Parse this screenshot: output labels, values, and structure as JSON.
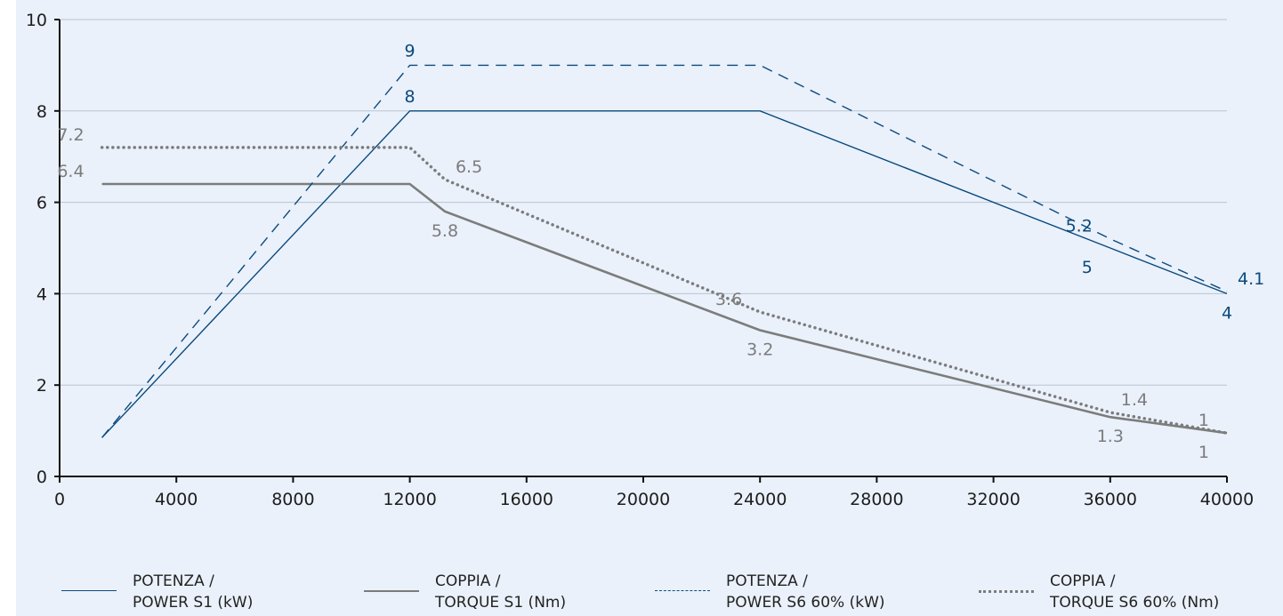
{
  "chart_data": {
    "type": "line",
    "title": "",
    "xlabel": "",
    "ylabel": "",
    "xlim": [
      0,
      40000
    ],
    "ylim": [
      0,
      10
    ],
    "xticks": [
      0,
      4000,
      8000,
      12000,
      16000,
      20000,
      24000,
      28000,
      32000,
      36000,
      40000
    ],
    "yticks": [
      0,
      2,
      4,
      6,
      8,
      10
    ],
    "grid": "horizontal",
    "legend_position": "bottom",
    "colors": {
      "blue": "#0b4a7d",
      "gray": "#7c7c7c"
    },
    "series": [
      {
        "name": "POTENZA / POWER S1 (kW)",
        "legend_lines": [
          "POTENZA /",
          "POWER S1 (kW)"
        ],
        "color": "#0b4a7d",
        "style": "solid",
        "points": [
          [
            1450,
            0.85
          ],
          [
            12000,
            8
          ],
          [
            20000,
            8
          ],
          [
            24000,
            8
          ],
          [
            36000,
            5
          ],
          [
            40000,
            4
          ]
        ]
      },
      {
        "name": "COPPIA / TORQUE S1 (Nm)",
        "legend_lines": [
          "COPPIA /",
          "TORQUE S1 (Nm)"
        ],
        "color": "#7c7c7c",
        "style": "solid",
        "points": [
          [
            1450,
            6.4
          ],
          [
            12000,
            6.4
          ],
          [
            13200,
            5.8
          ],
          [
            24000,
            3.2
          ],
          [
            36000,
            1.3
          ],
          [
            40000,
            0.95
          ]
        ]
      },
      {
        "name": "POTENZA / POWER S6 60% (kW)",
        "legend_lines": [
          "POTENZA /",
          "POWER S6 60% (kW)"
        ],
        "color": "#0b4a7d",
        "style": "dashed",
        "points": [
          [
            1450,
            0.85
          ],
          [
            12000,
            9
          ],
          [
            24000,
            9
          ],
          [
            36000,
            5.2
          ],
          [
            40000,
            4.05
          ]
        ]
      },
      {
        "name": "COPPIA / TORQUE S6 60% (Nm)",
        "legend_lines": [
          "COPPIA /",
          "TORQUE S6 60% (Nm)"
        ],
        "color": "#7c7c7c",
        "style": "dotted",
        "points": [
          [
            1450,
            7.2
          ],
          [
            12000,
            7.2
          ],
          [
            13200,
            6.5
          ],
          [
            24000,
            3.6
          ],
          [
            36000,
            1.4
          ],
          [
            40000,
            0.95
          ]
        ]
      }
    ],
    "data_labels": [
      {
        "text": "9",
        "x": 12000,
        "y": 9,
        "color": "blue",
        "anchor": "above"
      },
      {
        "text": "8",
        "x": 12000,
        "y": 8,
        "color": "blue",
        "anchor": "above"
      },
      {
        "text": "5.2",
        "x": 36000,
        "y": 5.2,
        "color": "blue",
        "anchor": "above-left"
      },
      {
        "text": "5",
        "x": 36000,
        "y": 5,
        "color": "blue",
        "anchor": "below-left"
      },
      {
        "text": "4.1",
        "x": 40000,
        "y": 4.05,
        "color": "blue",
        "anchor": "above-right"
      },
      {
        "text": "4",
        "x": 40000,
        "y": 4,
        "color": "blue",
        "anchor": "below"
      },
      {
        "text": "7.2",
        "x": 1450,
        "y": 7.2,
        "color": "gray",
        "anchor": "above-left"
      },
      {
        "text": "6.4",
        "x": 1450,
        "y": 6.4,
        "color": "gray",
        "anchor": "above-left"
      },
      {
        "text": "6.5",
        "x": 13200,
        "y": 6.5,
        "color": "gray",
        "anchor": "above-right"
      },
      {
        "text": "5.8",
        "x": 13200,
        "y": 5.8,
        "color": "gray",
        "anchor": "below"
      },
      {
        "text": "3.6",
        "x": 24000,
        "y": 3.6,
        "color": "gray",
        "anchor": "above-left"
      },
      {
        "text": "3.2",
        "x": 24000,
        "y": 3.2,
        "color": "gray",
        "anchor": "below"
      },
      {
        "text": "1.4",
        "x": 36000,
        "y": 1.4,
        "color": "gray",
        "anchor": "above-right"
      },
      {
        "text": "1.3",
        "x": 36000,
        "y": 1.3,
        "color": "gray",
        "anchor": "below"
      },
      {
        "text": "1",
        "x": 40000,
        "y": 0.95,
        "color": "gray",
        "anchor": "above-left"
      },
      {
        "text": "1",
        "x": 40000,
        "y": 0.95,
        "color": "gray",
        "anchor": "below-left"
      }
    ]
  }
}
